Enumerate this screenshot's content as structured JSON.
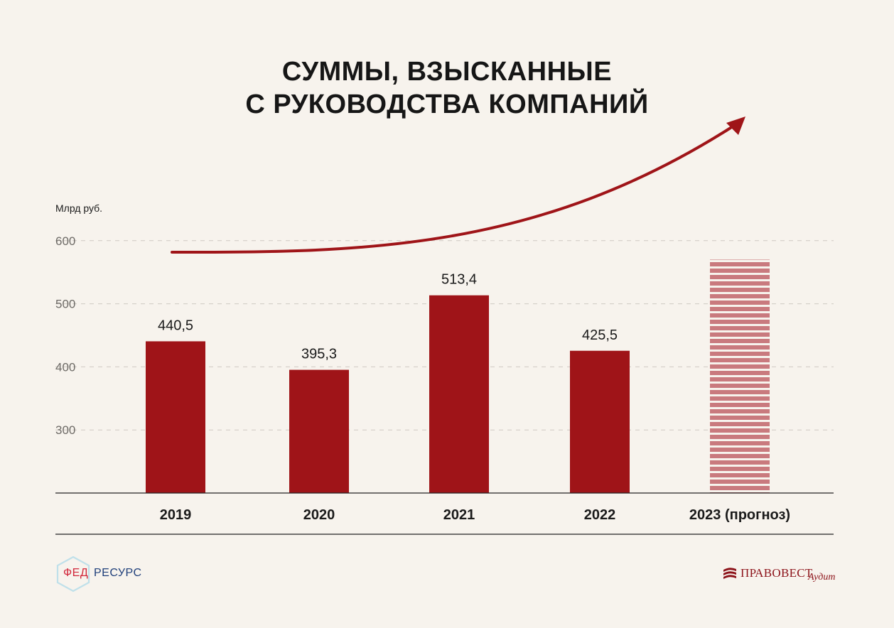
{
  "title": {
    "line1": "СУММЫ, ВЗЫСКАННЫЕ",
    "line2": "С РУКОВОДСТВА КОМПАНИЙ"
  },
  "chart_data": {
    "type": "bar",
    "unit_label": "Млрд руб.",
    "categories": [
      "2019",
      "2020",
      "2021",
      "2022",
      "2023 (прогноз)"
    ],
    "values": [
      440.5,
      395.3,
      513.4,
      425.5,
      570
    ],
    "value_labels": [
      "440,5",
      "395,3",
      "513,4",
      "425,5",
      ""
    ],
    "forecast_index": 4,
    "yticks": [
      300,
      400,
      500,
      600
    ],
    "ylim": [
      200,
      700
    ],
    "grid": true,
    "colors": {
      "bar": "#9f1418",
      "forecast_bar": "#c97a7e",
      "arrow": "#9f1418",
      "grid": "#cfcac3"
    }
  },
  "logos": {
    "left_part1": "ФЕД",
    "left_part2": "РЕСУРС",
    "right_main": "ПРАВОВЕСТ",
    "right_italic": "Аудит"
  }
}
